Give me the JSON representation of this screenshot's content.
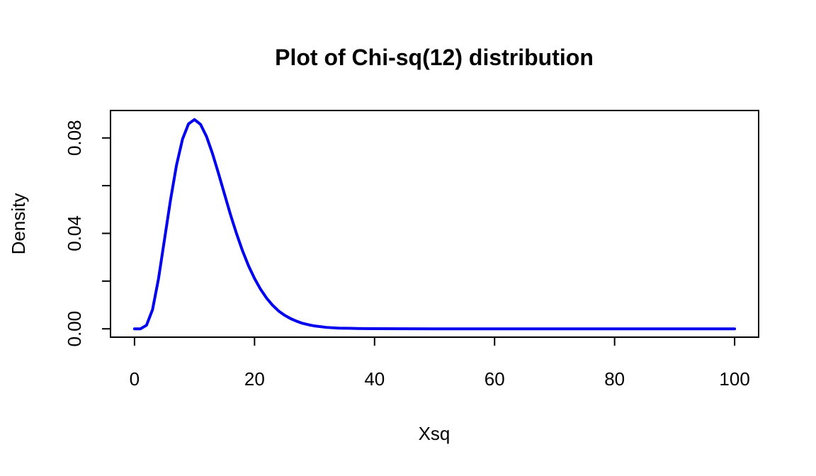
{
  "chart_data": {
    "type": "line",
    "title": "Plot of Chi-sq(12) distribution",
    "xlabel": "Xsq",
    "ylabel": "Density",
    "xlim": [
      -4,
      104
    ],
    "ylim": [
      -0.0035,
      0.0915
    ],
    "x_ticks": [
      0,
      20,
      40,
      60,
      80,
      100
    ],
    "x_tick_labels": [
      "0",
      "20",
      "40",
      "60",
      "80",
      "100"
    ],
    "y_ticks": [
      0,
      0.02,
      0.04,
      0.06,
      0.08
    ],
    "y_tick_labels": [
      "0.00",
      "",
      "0.04",
      "",
      "0.08"
    ],
    "grid": false,
    "frame": true,
    "series": [
      {
        "color": "#0000ee",
        "x": [
          0,
          1,
          2,
          3,
          4,
          5,
          6,
          7,
          8,
          9,
          10,
          11,
          12,
          13,
          14,
          15,
          16,
          17,
          18,
          19,
          20,
          21,
          22,
          23,
          24,
          25,
          26,
          27,
          28,
          29,
          30,
          32,
          34,
          36,
          38,
          40,
          45,
          50,
          55,
          60,
          65,
          70,
          75,
          80,
          85,
          90,
          95,
          100
        ],
        "y": [
          0,
          1e-07,
          0.0015,
          0.008,
          0.021,
          0.0375,
          0.054,
          0.0686,
          0.0795,
          0.0859,
          0.0877,
          0.0857,
          0.0806,
          0.0734,
          0.0651,
          0.0564,
          0.0478,
          0.0399,
          0.0327,
          0.0264,
          0.0211,
          0.0166,
          0.0129,
          0.0099,
          0.0075,
          0.0057,
          0.0043,
          0.0032,
          0.0023,
          0.0017,
          0.0012,
          0.0006,
          0.0003,
          0.0002,
          0.0001,
          5e-05,
          1e-05,
          0.0,
          0.0,
          0.0,
          0.0,
          0.0,
          0.0,
          0.0,
          0.0,
          0.0,
          0.0,
          0.0
        ]
      }
    ]
  }
}
